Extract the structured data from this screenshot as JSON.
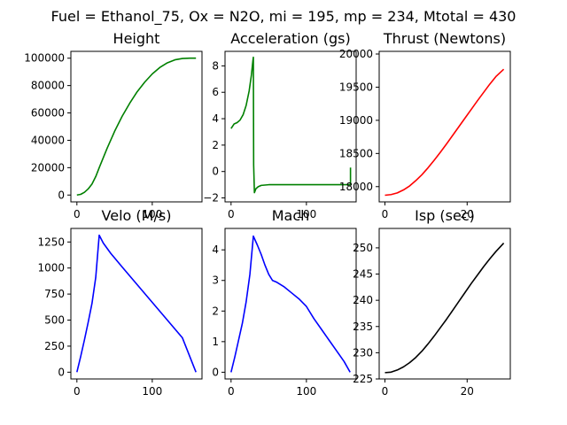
{
  "figure": {
    "suptitle": "Fuel = Ethanol_75, Ox = N2O, mi = 195, mp = 234, Mtotal = 430"
  },
  "chart_data": [
    {
      "type": "line",
      "title": "Height",
      "xlabel": "",
      "ylabel": "",
      "xlim": [
        -8,
        166
      ],
      "ylim": [
        -5000,
        105000
      ],
      "xticks": [
        0,
        100
      ],
      "xtick_labels": [
        "0",
        "100"
      ],
      "yticks": [
        0,
        20000,
        40000,
        60000,
        80000,
        100000
      ],
      "ytick_labels": [
        "0",
        "20000",
        "40000",
        "60000",
        "80000",
        "100000"
      ],
      "series": [
        {
          "color": "#008000",
          "x": [
            0,
            5,
            10,
            15,
            20,
            25,
            30,
            40,
            50,
            60,
            70,
            80,
            90,
            100,
            110,
            120,
            130,
            140,
            150,
            158
          ],
          "y": [
            0,
            500,
            2000,
            4500,
            8000,
            13500,
            20500,
            34000,
            46500,
            57500,
            67000,
            75500,
            82500,
            88500,
            93200,
            96600,
            98800,
            99800,
            100000,
            100000
          ]
        }
      ]
    },
    {
      "type": "line",
      "title": "Acceleration (gs)",
      "xlabel": "",
      "ylabel": "",
      "xlim": [
        -8,
        166
      ],
      "ylim": [
        -2.3,
        9.1
      ],
      "xticks": [
        0,
        100
      ],
      "xtick_labels": [
        "0",
        "100"
      ],
      "yticks": [
        -2,
        0,
        2,
        4,
        6,
        8
      ],
      "ytick_labels": [
        "−2",
        "0",
        "2",
        "4",
        "6",
        "8"
      ],
      "series": [
        {
          "color": "#008000",
          "x": [
            0,
            4,
            8,
            12,
            16,
            20,
            24,
            27,
            29,
            29.6,
            30,
            31,
            33,
            36,
            40,
            50,
            60,
            80,
            100,
            120,
            140,
            158,
            158.5,
            158.5
          ],
          "y": [
            3.25,
            3.6,
            3.7,
            3.9,
            4.3,
            5.0,
            6.1,
            7.3,
            8.4,
            8.65,
            0.5,
            -1.6,
            -1.3,
            -1.15,
            -1.05,
            -1.0,
            -1.0,
            -1.0,
            -1.0,
            -1.0,
            -1.0,
            -1.0,
            -1.0,
            0.3
          ]
        }
      ]
    },
    {
      "type": "line",
      "title": "Thrust (Newtons)",
      "xlabel": "",
      "ylabel": "",
      "xlim": [
        -1.4,
        30.5
      ],
      "ylim": [
        17770,
        20040
      ],
      "xticks": [
        0,
        20
      ],
      "xtick_labels": [
        "0",
        "20"
      ],
      "yticks": [
        18000,
        18500,
        19000,
        19500,
        20000
      ],
      "ytick_labels": [
        "18000",
        "18500",
        "19000",
        "19500",
        "20000"
      ],
      "series": [
        {
          "color": "#ff0000",
          "x": [
            0,
            1.5,
            3,
            4.5,
            6,
            7.5,
            9,
            10.5,
            12,
            13.5,
            15,
            16.5,
            18,
            19.5,
            21,
            22.5,
            24,
            25.5,
            27,
            28.9
          ],
          "y": [
            17870,
            17880,
            17905,
            17950,
            18010,
            18090,
            18180,
            18285,
            18400,
            18520,
            18645,
            18775,
            18905,
            19035,
            19165,
            19295,
            19420,
            19545,
            19660,
            19770
          ]
        }
      ]
    },
    {
      "type": "line",
      "title": "Velo (M/s)",
      "xlabel": "",
      "ylabel": "",
      "xlim": [
        -8,
        166
      ],
      "ylim": [
        -65,
        1380
      ],
      "xticks": [
        0,
        100
      ],
      "xtick_labels": [
        "0",
        "100"
      ],
      "yticks": [
        0,
        250,
        500,
        750,
        1000,
        1250
      ],
      "ytick_labels": [
        "0",
        "250",
        "500",
        "750",
        "1000",
        "1250"
      ],
      "series": [
        {
          "color": "#0000ff",
          "x": [
            0,
            5,
            10,
            15,
            20,
            25,
            29.6,
            35,
            45,
            60,
            80,
            100,
            120,
            140,
            158
          ],
          "y": [
            0,
            150,
            310,
            480,
            660,
            910,
            1315,
            1240,
            1140,
            1010,
            840,
            670,
            500,
            330,
            0
          ]
        }
      ]
    },
    {
      "type": "line",
      "title": "Mach",
      "xlabel": "",
      "ylabel": "",
      "xlim": [
        -8,
        166
      ],
      "ylim": [
        -0.22,
        4.7
      ],
      "xticks": [
        0,
        100
      ],
      "xtick_labels": [
        "0",
        "100"
      ],
      "yticks": [
        0,
        1,
        2,
        3,
        4
      ],
      "ytick_labels": [
        "0",
        "1",
        "2",
        "3",
        "4"
      ],
      "series": [
        {
          "color": "#0000ff",
          "x": [
            0,
            5,
            10,
            15,
            20,
            25,
            29.6,
            35,
            40,
            45,
            50,
            55,
            60,
            70,
            80,
            90,
            100,
            110,
            120,
            130,
            140,
            150,
            158
          ],
          "y": [
            0,
            0.5,
            1.05,
            1.6,
            2.3,
            3.2,
            4.45,
            4.15,
            3.85,
            3.5,
            3.2,
            3.0,
            2.95,
            2.8,
            2.6,
            2.4,
            2.15,
            1.75,
            1.4,
            1.05,
            0.7,
            0.35,
            0
          ]
        }
      ]
    },
    {
      "type": "line",
      "title": "Isp (sec)",
      "xlabel": "",
      "ylabel": "",
      "xlim": [
        -1.4,
        30.5
      ],
      "ylim": [
        225,
        253.7
      ],
      "xticks": [
        0,
        20
      ],
      "xtick_labels": [
        "0",
        "20"
      ],
      "yticks": [
        225,
        230,
        235,
        240,
        245,
        250
      ],
      "ytick_labels": [
        "225",
        "230",
        "235",
        "240",
        "245",
        "250"
      ],
      "series": [
        {
          "color": "#000000",
          "x": [
            0,
            1.5,
            3,
            4.5,
            6,
            7.5,
            9,
            10.5,
            12,
            13.5,
            15,
            16.5,
            18,
            19.5,
            21,
            22.5,
            24,
            25.5,
            27,
            28.9
          ],
          "y": [
            226.2,
            226.3,
            226.7,
            227.3,
            228.1,
            229.1,
            230.3,
            231.7,
            233.2,
            234.8,
            236.4,
            238.1,
            239.8,
            241.5,
            243.2,
            244.8,
            246.4,
            247.9,
            249.3,
            250.9
          ]
        }
      ]
    }
  ]
}
